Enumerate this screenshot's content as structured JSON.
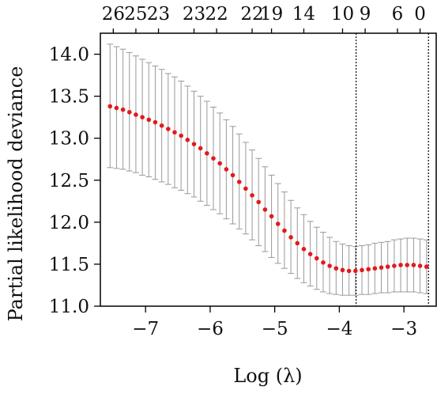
{
  "chart_data": {
    "type": "scatter",
    "title": "",
    "xlabel": "Log (λ)",
    "ylabel": "Partial likelihood deviance",
    "xlim": [
      -7.7,
      -2.5
    ],
    "ylim": [
      11.0,
      14.25
    ],
    "x_ticks": [
      -7,
      -6,
      -5,
      -4,
      -3
    ],
    "x_tick_labels": [
      "−7",
      "−6",
      "−5",
      "−4",
      "−3"
    ],
    "y_ticks": [
      11.0,
      11.5,
      12.0,
      12.5,
      13.0,
      13.5,
      14.0
    ],
    "y_tick_labels": [
      "11.0",
      "11.5",
      "12.0",
      "12.5",
      "13.0",
      "13.5",
      "14.0"
    ],
    "top_axis": {
      "positions": [
        -7.5,
        -7.15,
        -6.8,
        -6.25,
        -5.9,
        -5.35,
        -5.05,
        -4.55,
        -3.95,
        -3.6,
        -3.1,
        -2.75
      ],
      "labels": [
        "26",
        "25",
        "23",
        "23",
        "22",
        "22",
        "19",
        "14",
        "10",
        "9",
        "6",
        "0"
      ]
    },
    "vlines": [
      -3.74,
      -2.62
    ],
    "colors": {
      "points": "#e31a1c",
      "errorbars": "#999999",
      "vlines": "#000000"
    },
    "series": [
      {
        "x": [
          -7.55,
          -7.45,
          -7.35,
          -7.25,
          -7.15,
          -7.05,
          -6.95,
          -6.85,
          -6.75,
          -6.65,
          -6.55,
          -6.45,
          -6.35,
          -6.25,
          -6.15,
          -6.05,
          -5.95,
          -5.85,
          -5.75,
          -5.65,
          -5.55,
          -5.45,
          -5.35,
          -5.25,
          -5.15,
          -5.05,
          -4.95,
          -4.85,
          -4.75,
          -4.65,
          -4.55,
          -4.45,
          -4.35,
          -4.25,
          -4.15,
          -4.05,
          -3.95,
          -3.85,
          -3.75,
          -3.65,
          -3.55,
          -3.45,
          -3.35,
          -3.25,
          -3.15,
          -3.05,
          -2.95,
          -2.85,
          -2.75,
          -2.65
        ],
        "y": [
          13.38,
          13.36,
          13.34,
          13.31,
          13.28,
          13.25,
          13.22,
          13.19,
          13.15,
          13.11,
          13.07,
          13.03,
          12.98,
          12.93,
          12.88,
          12.82,
          12.76,
          12.7,
          12.63,
          12.56,
          12.48,
          12.4,
          12.32,
          12.24,
          12.15,
          12.07,
          11.98,
          11.9,
          11.82,
          11.75,
          11.68,
          11.62,
          11.57,
          11.52,
          11.48,
          11.45,
          11.43,
          11.42,
          11.42,
          11.43,
          11.44,
          11.45,
          11.46,
          11.47,
          11.48,
          11.49,
          11.49,
          11.49,
          11.48,
          11.47
        ],
        "lower": [
          12.65,
          12.64,
          12.63,
          12.61,
          12.59,
          12.56,
          12.54,
          12.51,
          12.48,
          12.45,
          12.41,
          12.38,
          12.34,
          12.3,
          12.25,
          12.2,
          12.15,
          12.1,
          12.04,
          11.98,
          11.92,
          11.86,
          11.79,
          11.72,
          11.65,
          11.58,
          11.51,
          11.45,
          11.39,
          11.33,
          11.28,
          11.24,
          11.2,
          11.17,
          11.15,
          11.14,
          11.13,
          11.13,
          11.13,
          11.14,
          11.14,
          11.15,
          11.16,
          11.16,
          11.17,
          11.17,
          11.17,
          11.17,
          11.16,
          11.15
        ],
        "upper": [
          14.12,
          14.09,
          14.06,
          14.02,
          13.98,
          13.94,
          13.9,
          13.86,
          13.82,
          13.77,
          13.73,
          13.68,
          13.62,
          13.56,
          13.5,
          13.44,
          13.37,
          13.3,
          13.22,
          13.14,
          13.05,
          12.95,
          12.86,
          12.76,
          12.66,
          12.56,
          12.46,
          12.36,
          12.26,
          12.17,
          12.09,
          12.01,
          11.94,
          11.88,
          11.82,
          11.77,
          11.74,
          11.72,
          11.71,
          11.72,
          11.73,
          11.75,
          11.76,
          11.77,
          11.79,
          11.8,
          11.81,
          11.81,
          11.8,
          11.79
        ]
      }
    ]
  }
}
